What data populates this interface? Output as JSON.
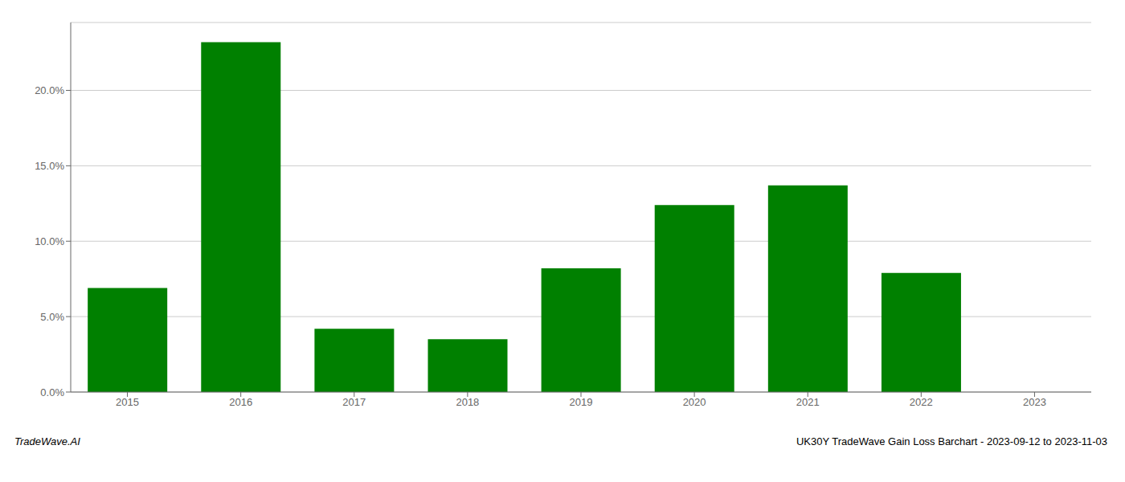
{
  "chart_data": {
    "type": "bar",
    "categories": [
      "2015",
      "2016",
      "2017",
      "2018",
      "2019",
      "2020",
      "2021",
      "2022",
      "2023"
    ],
    "values": [
      0.069,
      0.232,
      0.042,
      0.035,
      0.082,
      0.124,
      0.137,
      0.079,
      0.0
    ],
    "color": "#008000",
    "ylim": [
      0,
      0.245
    ],
    "yticks": [
      {
        "value": 0.0,
        "label": "0.0%"
      },
      {
        "value": 0.05,
        "label": "5.0%"
      },
      {
        "value": 0.1,
        "label": "10.0%"
      },
      {
        "value": 0.15,
        "label": "15.0%"
      },
      {
        "value": 0.2,
        "label": "20.0%"
      }
    ],
    "grid": true,
    "annotations": [
      "TradeWave.AI",
      "UK30Y TradeWave Gain Loss Barchart - 2023-09-12 to 2023-11-03"
    ]
  }
}
